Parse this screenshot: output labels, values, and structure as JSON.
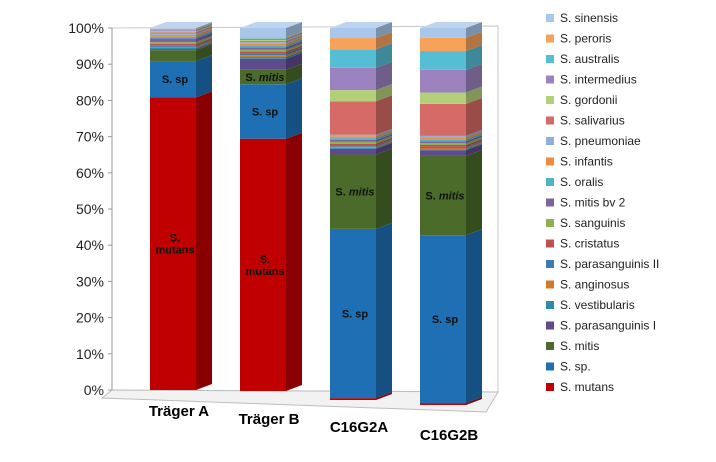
{
  "chart_data": {
    "type": "bar",
    "stacked": true,
    "percent_stacked": true,
    "projection": "3d",
    "categories": [
      "Träger A",
      "Träger B",
      "C16G2A",
      "C16G2B"
    ],
    "yticks": [
      "0%",
      "10%",
      "20%",
      "30%",
      "40%",
      "50%",
      "60%",
      "70%",
      "80%",
      "90%",
      "100%"
    ],
    "ylim": [
      0,
      100
    ],
    "grid": false,
    "legend_position": "right",
    "series": [
      {
        "name": "S. mutans",
        "color": "#c00000",
        "values": [
          80.5,
          69.5,
          0.5,
          0.5
        ]
      },
      {
        "name": "S. sp.",
        "color": "#1f6fb5",
        "values": [
          10.0,
          15.0,
          45.5,
          44.5
        ]
      },
      {
        "name": "S. mitis",
        "color": "#4a6b2a",
        "values": [
          3.0,
          4.0,
          20.0,
          21.0
        ]
      },
      {
        "name": "S. parasanguinis I",
        "color": "#5e4a8c",
        "values": [
          0.3,
          3.0,
          1.5,
          1.5
        ]
      },
      {
        "name": "S. vestibularis",
        "color": "#2e8ca8",
        "values": [
          0.3,
          0.5,
          0.3,
          0.3
        ]
      },
      {
        "name": "S. anginosus",
        "color": "#d07a2e",
        "values": [
          0.3,
          0.5,
          0.3,
          0.3
        ]
      },
      {
        "name": "S. parasanguinis II",
        "color": "#3b7bb0",
        "values": [
          0.3,
          0.5,
          0.3,
          0.3
        ]
      },
      {
        "name": "S. cristatus",
        "color": "#c0504d",
        "values": [
          0.5,
          0.5,
          0.5,
          0.5
        ]
      },
      {
        "name": "S. sanguinis",
        "color": "#8fb04f",
        "values": [
          0.5,
          0.5,
          0.5,
          0.5
        ]
      },
      {
        "name": "S. mitis bv 2",
        "color": "#7d63a3",
        "values": [
          1.0,
          0.7,
          0.5,
          0.5
        ]
      },
      {
        "name": "S. oralis",
        "color": "#4fb3c9",
        "values": [
          0.5,
          0.5,
          0.5,
          0.5
        ]
      },
      {
        "name": "S. infantis",
        "color": "#f08c3a",
        "values": [
          0.5,
          0.5,
          0.5,
          0.5
        ]
      },
      {
        "name": "S. pneumoniae",
        "color": "#8eb0d9",
        "values": [
          0.4,
          0.4,
          0.4,
          0.4
        ]
      },
      {
        "name": "S. salivarius",
        "color": "#d66a66",
        "values": [
          0.3,
          0.3,
          9.0,
          8.5
        ]
      },
      {
        "name": "S. gordonii",
        "color": "#b3cf7a",
        "values": [
          0.3,
          0.3,
          3.0,
          3.0
        ]
      },
      {
        "name": "S. intermedius",
        "color": "#9c83c0",
        "values": [
          0.3,
          0.3,
          6.0,
          6.0
        ]
      },
      {
        "name": "S. australis",
        "color": "#55bed4",
        "values": [
          0.2,
          0.2,
          5.0,
          5.0
        ]
      },
      {
        "name": "S. peroris",
        "color": "#f7a25a",
        "values": [
          0.2,
          0.2,
          3.0,
          3.5
        ]
      },
      {
        "name": "S. sinensis",
        "color": "#a9c7ea",
        "values": [
          0.2,
          2.6,
          2.7,
          2.6
        ]
      }
    ],
    "bar_labels": [
      {
        "bar": 0,
        "series": "S. sp.",
        "text": "S. sp"
      },
      {
        "bar": 0,
        "series": "S. mutans",
        "text": "S.\nmutans"
      },
      {
        "bar": 1,
        "series": "S. mitis",
        "text": "S. mitis"
      },
      {
        "bar": 1,
        "series": "S. sp.",
        "text": "S. sp"
      },
      {
        "bar": 1,
        "series": "S. mutans",
        "text": "S.\nmutans"
      },
      {
        "bar": 2,
        "series": "S. mitis",
        "text": "S. mitis"
      },
      {
        "bar": 2,
        "series": "S. sp.",
        "text": "S. sp"
      },
      {
        "bar": 3,
        "series": "S. mitis",
        "text": "S. mitis"
      },
      {
        "bar": 3,
        "series": "S. sp.",
        "text": "S. sp"
      }
    ]
  }
}
